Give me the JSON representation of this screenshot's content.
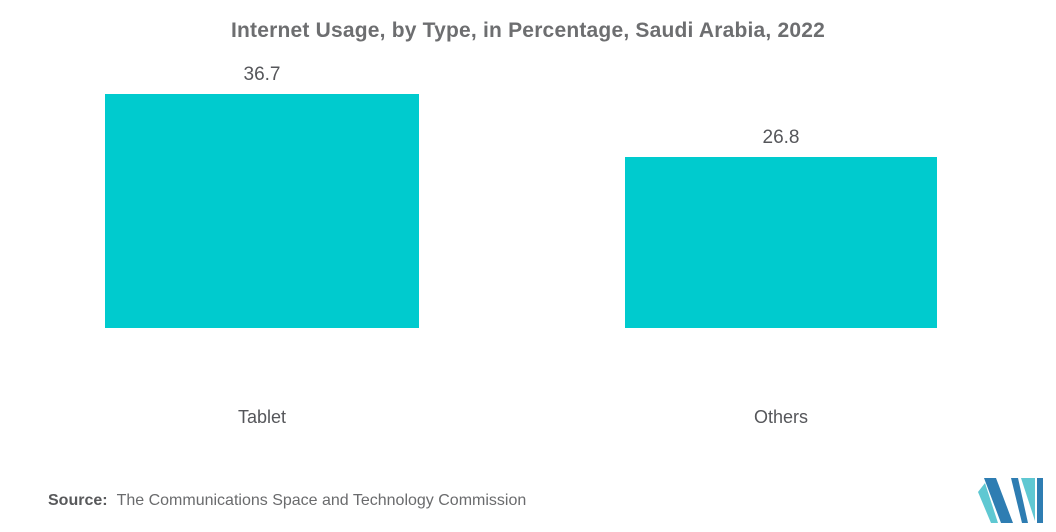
{
  "title": "Internet Usage, by Type, in Percentage, Saudi Arabia, 2022",
  "chart_data": {
    "type": "bar",
    "categories": [
      "Tablet",
      "Others"
    ],
    "values": [
      36.7,
      26.8
    ],
    "value_labels": [
      "36.7",
      "26.8"
    ],
    "title": "Internet Usage, by Type, in Percentage, Saudi Arabia, 2022",
    "xlabel": "",
    "ylabel": "",
    "ylim": [
      0,
      40
    ],
    "grid": false,
    "legend": false,
    "bar_color": "#00CBCE",
    "background": "#ffffff"
  },
  "source": {
    "label": "Source:",
    "text": "The Communications Space and Technology Commission"
  },
  "logo": {
    "name": "mordor-intelligence-logo",
    "colors": {
      "dark_blue": "#2E7DB2",
      "teal": "#5FC8D2"
    }
  },
  "colors": {
    "bar": "#00CBCE",
    "title_text": "#6d6e70",
    "value_text": "#55565a",
    "category_text": "#55565a",
    "source_label_text": "#58595b",
    "source_text": "#6a6b6d"
  }
}
